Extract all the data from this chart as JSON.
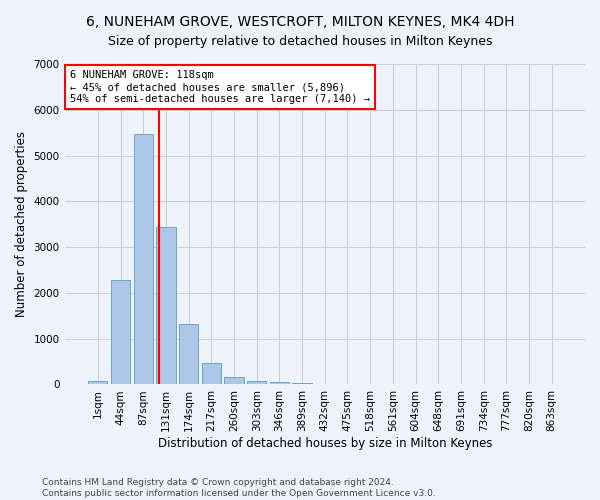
{
  "title": "6, NUNEHAM GROVE, WESTCROFT, MILTON KEYNES, MK4 4DH",
  "subtitle": "Size of property relative to detached houses in Milton Keynes",
  "xlabel": "Distribution of detached houses by size in Milton Keynes",
  "ylabel": "Number of detached properties",
  "footer_line1": "Contains HM Land Registry data © Crown copyright and database right 2024.",
  "footer_line2": "Contains public sector information licensed under the Open Government Licence v3.0.",
  "bar_labels": [
    "1sqm",
    "44sqm",
    "87sqm",
    "131sqm",
    "174sqm",
    "217sqm",
    "260sqm",
    "303sqm",
    "346sqm",
    "389sqm",
    "432sqm",
    "475sqm",
    "518sqm",
    "561sqm",
    "604sqm",
    "648sqm",
    "691sqm",
    "734sqm",
    "777sqm",
    "820sqm",
    "863sqm"
  ],
  "bar_values": [
    75,
    2280,
    5480,
    3450,
    1310,
    460,
    160,
    80,
    45,
    35,
    0,
    0,
    0,
    0,
    0,
    0,
    0,
    0,
    0,
    0,
    0
  ],
  "bar_color": "#aec6e8",
  "bar_edge_color": "#5a9fc8",
  "grid_color": "#cccccc",
  "bg_color": "#eef2fa",
  "annotation_text": "6 NUNEHAM GROVE: 118sqm\n← 45% of detached houses are smaller (5,896)\n54% of semi-detached houses are larger (7,140) →",
  "vline_color": "red",
  "annotation_box_color": "white",
  "annotation_box_edge": "red",
  "ylim": [
    0,
    7000
  ],
  "yticks": [
    0,
    1000,
    2000,
    3000,
    4000,
    5000,
    6000,
    7000
  ],
  "title_fontsize": 10,
  "subtitle_fontsize": 9,
  "axis_label_fontsize": 8.5,
  "tick_fontsize": 7.5,
  "footer_fontsize": 6.5
}
